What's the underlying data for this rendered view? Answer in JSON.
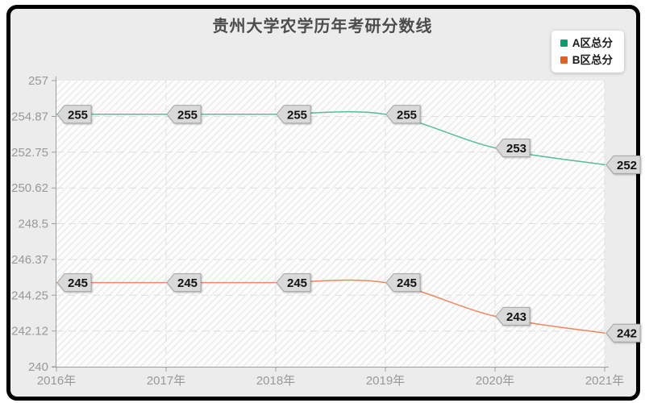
{
  "page": {
    "background_color": "#ffffff",
    "frame_border_color": "#000000",
    "canvas_color": "#ececec"
  },
  "header": {
    "title": "贵州大学农学历年考研分数线"
  },
  "chart_data": {
    "type": "line",
    "title": "贵州大学农学历年考研分数线",
    "categories": [
      "2016年",
      "2017年",
      "2018年",
      "2019年",
      "2020年",
      "2021年"
    ],
    "series": [
      {
        "name": "A区总分",
        "values": [
          255,
          255,
          255,
          255,
          253,
          252
        ],
        "line_color": "#55bd9c",
        "legend_color": "#0b9c70"
      },
      {
        "name": "B区总分",
        "values": [
          245,
          245,
          245,
          245,
          243,
          242
        ],
        "line_color": "#ea8a60",
        "legend_color": "#dc6227"
      }
    ],
    "xlabel": "",
    "ylabel": "",
    "ylim": [
      240,
      257
    ],
    "y_tick_labels": [
      "240",
      "242.12",
      "244.25",
      "246.37",
      "248.5",
      "250.62",
      "252.75",
      "254.87",
      "257"
    ],
    "grid": true,
    "grid_style": "dashed",
    "smooth": true,
    "data_labels": true,
    "legend_position": "top-right",
    "styles": {
      "title_color": "#4c4c4c",
      "plot_bg_color": "#fdfdfd",
      "plot_hatch_color": "#e9e9e9",
      "grid_color": "#dedede",
      "axis_color": "#9e9e9e",
      "tick_label_color": "#999999",
      "label_tag_fill": "#d9d9d9",
      "label_tag_border": "#a6a6a6",
      "label_tag_text": "#121212"
    }
  }
}
